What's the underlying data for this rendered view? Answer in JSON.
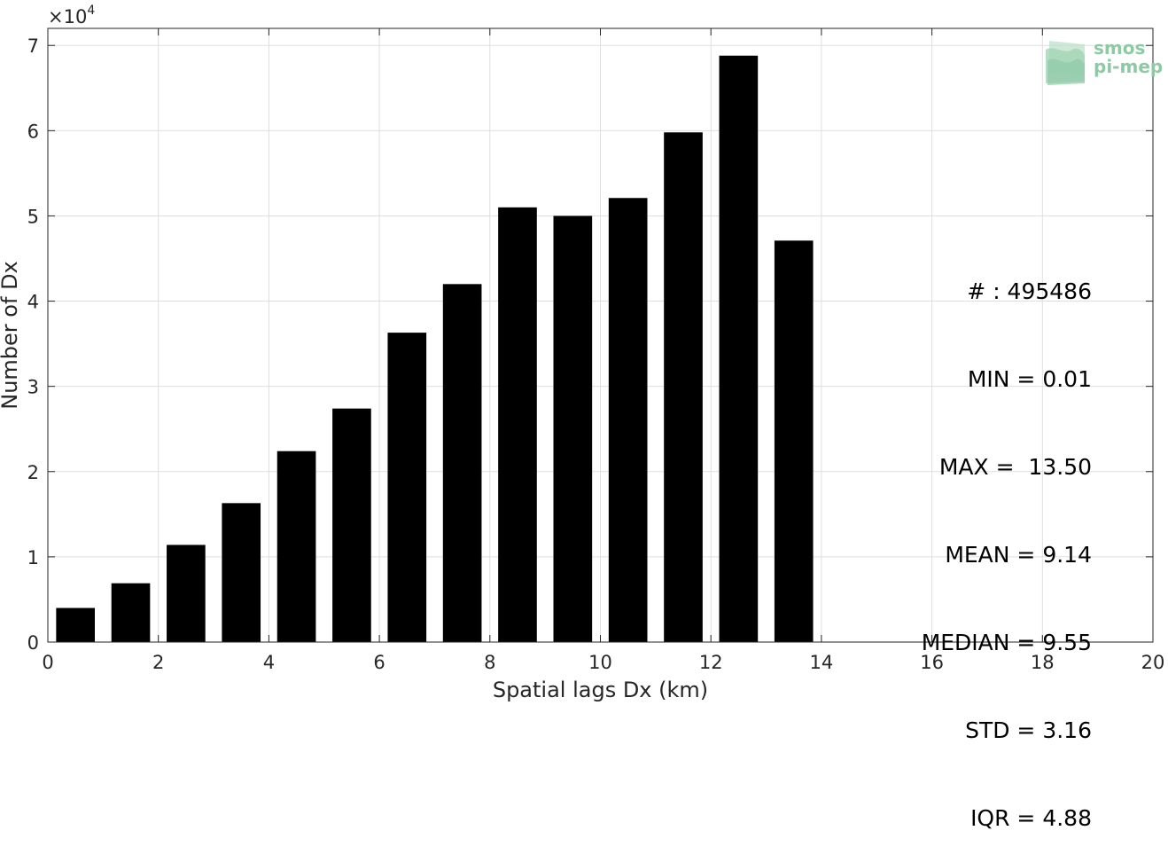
{
  "chart_data": {
    "type": "bar",
    "x": [
      0.5,
      1.5,
      2.5,
      3.5,
      4.5,
      5.5,
      6.5,
      7.5,
      8.5,
      9.5,
      10.5,
      11.5,
      12.5,
      13.5
    ],
    "values": [
      4000,
      6900,
      11400,
      16300,
      22400,
      27400,
      36300,
      42000,
      51000,
      50000,
      52100,
      59800,
      68800,
      47100
    ],
    "bar_width": 0.7,
    "bar_color": "#000000",
    "xlabel": "Spatial lags Dx (km)",
    "ylabel": "Number of Dx",
    "exponent_label": "×10",
    "exponent": "4",
    "xlim": [
      0,
      20
    ],
    "ylim": [
      0,
      72000
    ],
    "xticks": [
      0,
      2,
      4,
      6,
      8,
      10,
      12,
      14,
      16,
      18,
      20
    ],
    "yticks": [
      0,
      10000,
      20000,
      30000,
      40000,
      50000,
      60000,
      70000
    ],
    "ytick_labels": [
      "0",
      "1",
      "2",
      "3",
      "4",
      "5",
      "6",
      "7"
    ],
    "grid": true,
    "legend": "none"
  },
  "stats": {
    "count": "# : 495486",
    "min": "MIN = 0.01",
    "max": "MAX =  13.50",
    "mean": "MEAN = 9.14",
    "median": "MEDIAN = 9.55",
    "std": "STD = 3.16",
    "iqr": "IQR = 4.88"
  },
  "logo": {
    "line1": "smos",
    "line2": "pi-mep",
    "color": "#8ec9a6"
  }
}
